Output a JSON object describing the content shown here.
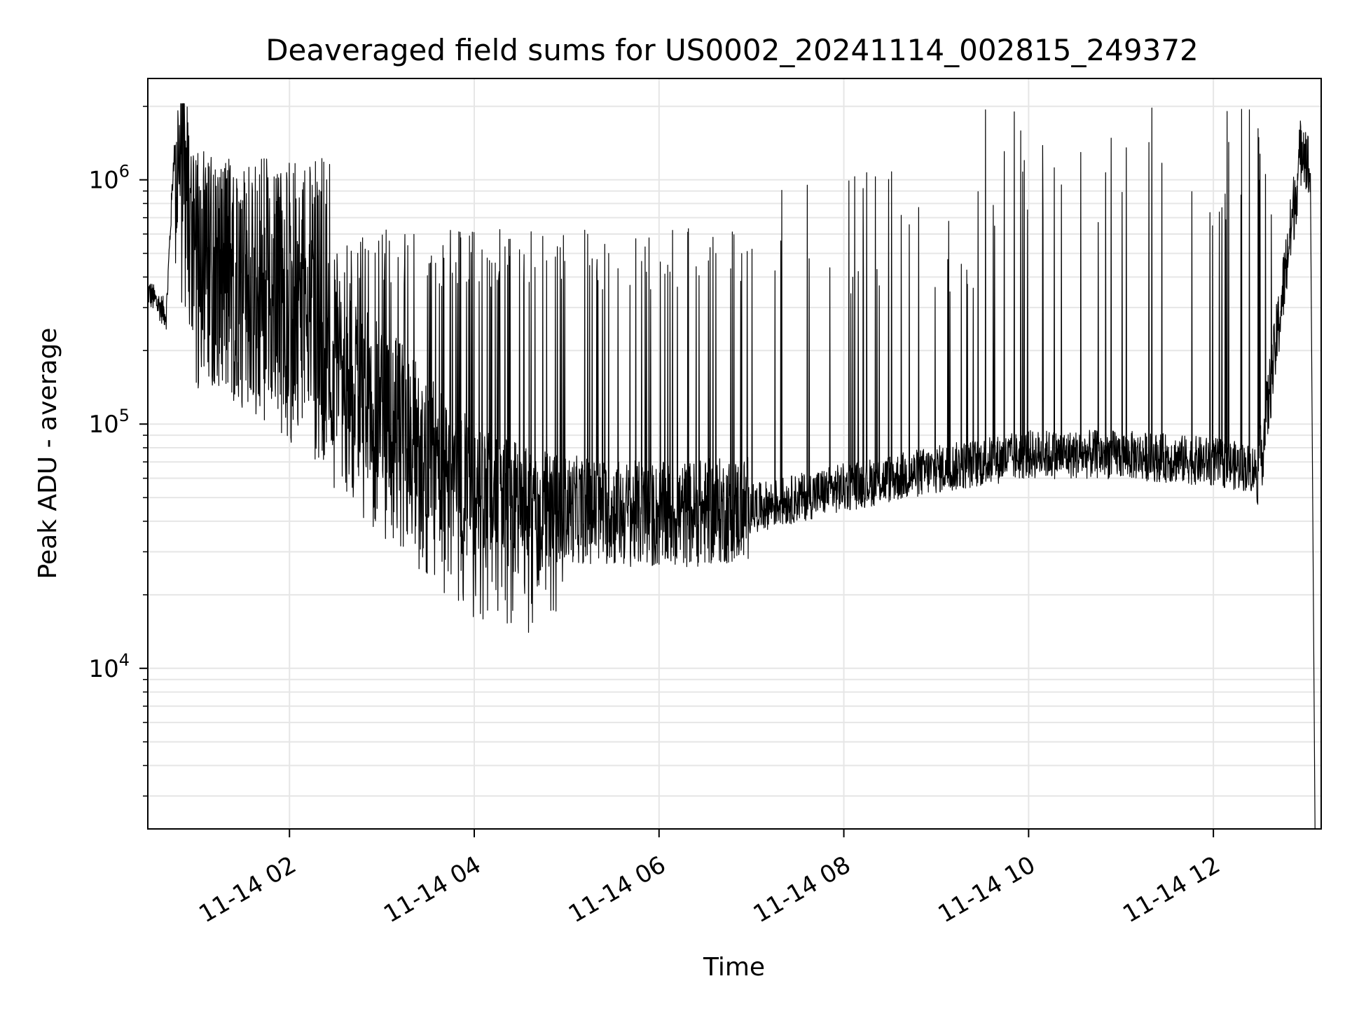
{
  "chart_data": {
    "type": "line",
    "title": "Deaveraged field sums for US0002_20241114_002815_249372",
    "xlabel": "Time",
    "ylabel": "Peak ADU - average",
    "x_scale": "time",
    "y_scale": "log",
    "xlim": [
      "2024-11-14 00:28",
      "2024-11-14 13:10"
    ],
    "ylim": [
      2200,
      2600000
    ],
    "grid": true,
    "line_color": "#000000",
    "x_ticks": [
      {
        "t": "2024-11-14 02:00",
        "label": "11-14 02"
      },
      {
        "t": "2024-11-14 04:00",
        "label": "11-14 04"
      },
      {
        "t": "2024-11-14 06:00",
        "label": "11-14 06"
      },
      {
        "t": "2024-11-14 08:00",
        "label": "11-14 08"
      },
      {
        "t": "2024-11-14 10:00",
        "label": "11-14 10"
      },
      {
        "t": "2024-11-14 12:00",
        "label": "11-14 12"
      }
    ],
    "y_ticks": [
      {
        "value": 10000,
        "base": "10",
        "exp": "4"
      },
      {
        "value": 100000,
        "base": "10",
        "exp": "5"
      },
      {
        "value": 1000000,
        "base": "10",
        "exp": "6"
      }
    ],
    "trend": {
      "x": [
        "2024-11-14 00:28",
        "2024-11-14 00:40",
        "2024-11-14 00:45",
        "2024-11-14 01:00",
        "2024-11-14 01:30",
        "2024-11-14 02:00",
        "2024-11-14 03:00",
        "2024-11-14 04:00",
        "2024-11-14 05:00",
        "2024-11-14 06:00",
        "2024-11-14 07:00",
        "2024-11-14 08:00",
        "2024-11-14 09:00",
        "2024-11-14 10:00",
        "2024-11-14 11:00",
        "2024-11-14 12:00",
        "2024-11-14 12:30",
        "2024-11-14 12:50",
        "2024-11-14 12:58",
        "2024-11-14 13:03",
        "2024-11-14 13:06"
      ],
      "y": [
        350000,
        280000,
        1300000,
        500000,
        350000,
        300000,
        120000,
        55000,
        45000,
        42000,
        45000,
        55000,
        65000,
        75000,
        75000,
        70000,
        65000,
        600000,
        1500000,
        1000000,
        2200
      ]
    }
  }
}
